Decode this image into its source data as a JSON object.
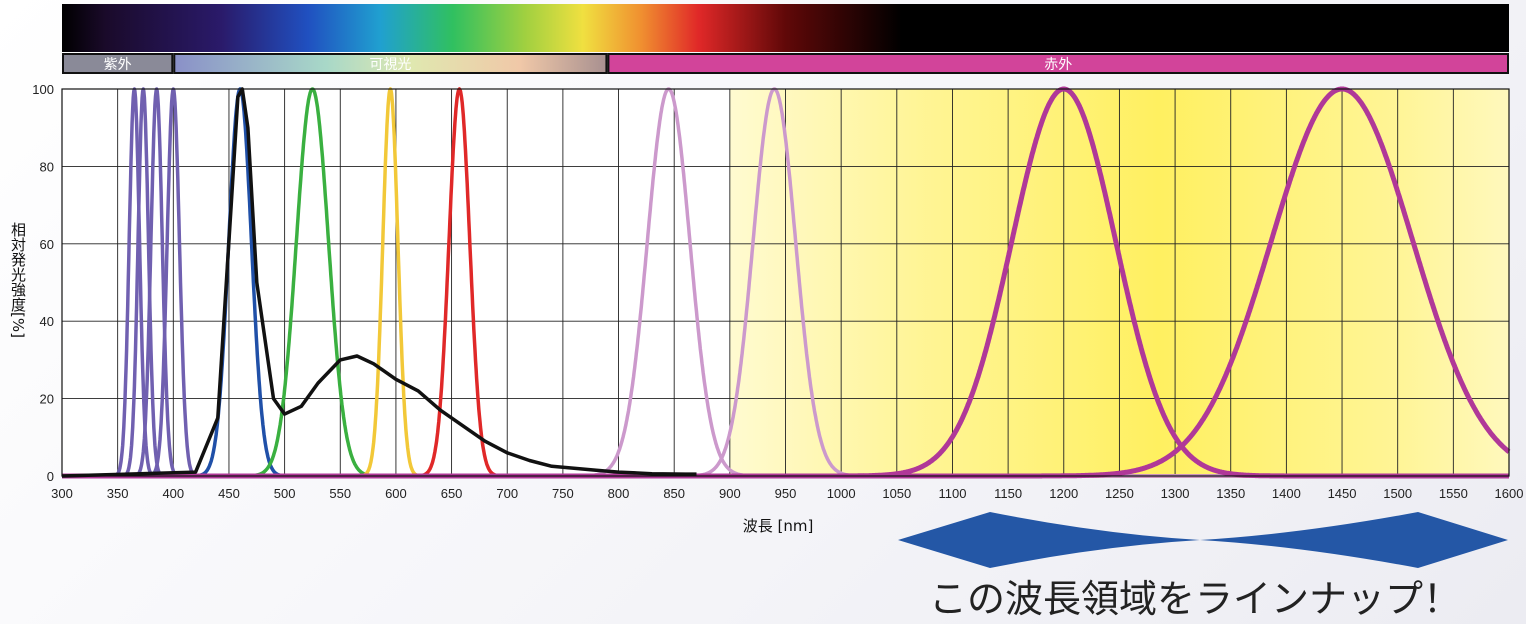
{
  "bands": [
    {
      "label": "紫外",
      "from": 300,
      "to": 400
    },
    {
      "label": "可視光",
      "from": 400,
      "to": 790
    },
    {
      "label": "赤外",
      "from": 790,
      "to": 1600
    }
  ],
  "tagline": "この波長領域をラインナップ！",
  "colors": {
    "uv": "#7060b0",
    "blue": "#2050a8",
    "white": "#111111",
    "green": "#3ab040",
    "yellow": "#f2c838",
    "red": "#e02828",
    "ir_light": "#cc99cc",
    "ir_dark": "#b03898",
    "band_magenta": "#d2449a",
    "arrow": "#2457a6",
    "highlight": "#fff27a"
  },
  "chart_data": {
    "type": "line",
    "xlabel": "波長 [nm]",
    "ylabel": "相対発光強度[%]",
    "xlim": [
      300,
      1600
    ],
    "ylim": [
      0,
      100
    ],
    "xticks": [
      300,
      350,
      400,
      450,
      500,
      550,
      600,
      650,
      700,
      750,
      800,
      850,
      900,
      950,
      1000,
      1050,
      1100,
      1150,
      1200,
      1250,
      1300,
      1350,
      1400,
      1450,
      1500,
      1550,
      1600
    ],
    "yticks": [
      0,
      20,
      40,
      60,
      80,
      100
    ],
    "highlight_range": [
      900,
      1600
    ],
    "series": [
      {
        "color": "uv",
        "peak": 365,
        "fwhm": 11
      },
      {
        "color": "uv",
        "peak": 373,
        "fwhm": 11
      },
      {
        "color": "uv",
        "peak": 385,
        "fwhm": 12
      },
      {
        "color": "uv",
        "peak": 400,
        "fwhm": 13
      },
      {
        "color": "blue",
        "peak": 460,
        "fwhm": 24
      },
      {
        "color": "green",
        "peak": 525,
        "fwhm": 34
      },
      {
        "color": "yellow",
        "peak": 595,
        "fwhm": 16
      },
      {
        "color": "red",
        "peak": 657,
        "fwhm": 22
      },
      {
        "color": "ir_light",
        "peak": 845,
        "fwhm": 45
      },
      {
        "color": "ir_light",
        "peak": 940,
        "fwhm": 45
      },
      {
        "color": "ir_dark",
        "peak": 1200,
        "fwhm": 110
      },
      {
        "color": "ir_dark",
        "peak": 1450,
        "fwhm": 150
      },
      {
        "color": "white",
        "points": [
          [
            300,
            0
          ],
          [
            420,
            1
          ],
          [
            440,
            15
          ],
          [
            452,
            70
          ],
          [
            458,
            98
          ],
          [
            462,
            100
          ],
          [
            467,
            90
          ],
          [
            475,
            50
          ],
          [
            490,
            20
          ],
          [
            500,
            16
          ],
          [
            515,
            18
          ],
          [
            530,
            24
          ],
          [
            550,
            30
          ],
          [
            565,
            31
          ],
          [
            580,
            29
          ],
          [
            600,
            25
          ],
          [
            620,
            22
          ],
          [
            640,
            17
          ],
          [
            660,
            13
          ],
          [
            680,
            9
          ],
          [
            700,
            6
          ],
          [
            720,
            4
          ],
          [
            740,
            2.5
          ],
          [
            760,
            2
          ],
          [
            780,
            1.5
          ],
          [
            800,
            1
          ],
          [
            830,
            0.6
          ],
          [
            860,
            0.5
          ],
          [
            870,
            0.5
          ]
        ]
      }
    ]
  }
}
